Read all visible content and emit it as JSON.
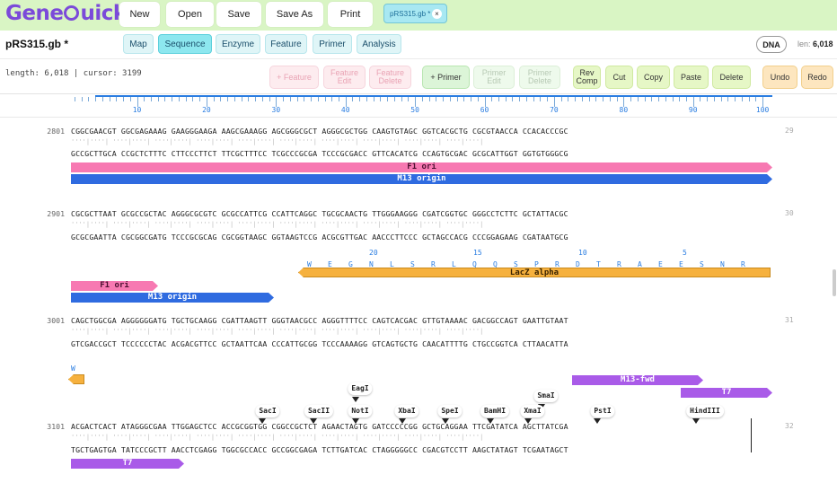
{
  "app": {
    "brand_pre": "Gene",
    "brand_post": "uick"
  },
  "toolbar": {
    "new": "New",
    "open": "Open",
    "save": "Save",
    "save_as": "Save As",
    "print": "Print"
  },
  "file_tab": {
    "label": "pRS315.gb *",
    "close": "×"
  },
  "file": {
    "name": "pRS315.gb *",
    "type_badge": "DNA",
    "len_label": "len:",
    "len_value": "6,018"
  },
  "views": [
    "Map",
    "Sequence",
    "Enzyme",
    "Feature",
    "Primer",
    "Analysis"
  ],
  "active_view": "Sequence",
  "status": "length: 6,018 | cursor: 3199",
  "actions": {
    "add_feature": "+ Feature",
    "feature_edit": "Feature Edit",
    "feature_delete": "Feature Delete",
    "add_primer": "+ Primer",
    "primer_edit": "Primer Edit",
    "primer_delete": "Primer Delete",
    "rev_comp": "Rev Comp",
    "cut": "Cut",
    "copy": "Copy",
    "paste": "Paste",
    "delete": "Delete",
    "undo": "Undo",
    "redo": "Redo"
  },
  "ruler": {
    "labels": [
      "10",
      "20",
      "30",
      "40",
      "50",
      "60",
      "70",
      "80",
      "90",
      "100"
    ]
  },
  "blocks": [
    {
      "index": "2801",
      "top": "CGGCGAACGT GGCGAGAAAG GAAGGGAAGA AAGCGAAAGG AGCGGGCGCT AGGGCGCTGG CAAGTGTAGC GGTCACGCTG CGCGTAACCA CCACACCCGC",
      "ticks": "''''|''''| ''''|''''| ''''|''''| ''''|''''| ''''|''''| ''''|''''| ''''|''''| ''''|''''| ''''|''''| ''''|''''|",
      "bottom": "GCCGCTTGCA CCGCTCTTTC CTTCCCTTCT TTCGCTTTCC TCGCCCGCGA TCCCGCGACC GTTCACATCG CCAGTGCGAC GCGCATTGGT GGTGTGGGCG",
      "right_index": "29"
    },
    {
      "index": "2901",
      "top": "CGCGCTTAAT GCGCCGCTAC AGGGCGCGTC GCGCCATTCG CCATTCAGGC TGCGCAACTG TTGGGAAGGG CGATCGGTGC GGGCCTCTTC GCTATTACGC",
      "ticks": "''''|''''| ''''|''''| ''''|''''| ''''|''''| ''''|''''| ''''|''''| ''''|''''| ''''|''''| ''''|''''| ''''|''''|",
      "bottom": "GCGCGAATTA CGCGGCGATG TCCCGCGCAG CGCGGTAAGC GGTAAGTCCG ACGCGTTGAC AACCCTTCCC GCTAGCCACG CCCGGAGAAG CGATAATGCG",
      "right_index": "30"
    },
    {
      "index": "3001",
      "top": "CAGCTGGCGA AGGGGGGATG TGCTGCAAGG CGATTAAGTT GGGTAACGCC AGGGTTTTCC CAGTCACGAC GTTGTAAAAC GACGGCCAGT GAATTGTAAT",
      "ticks": "''''|''''| ''''|''''| ''''|''''| ''''|''''| ''''|''''| ''''|''''| ''''|''''| ''''|''''| ''''|''''| ''''|''''|",
      "bottom": "GTCGACCGCT TCCCCCCTAC ACGACGTTCC GCTAATTCAA CCCATTGCGG TCCCAAAAGG GTCAGTGCTG CAACATTTTG CTGCCGGTCA CTTAACATTA",
      "right_index": "31"
    },
    {
      "index": "3101",
      "top": "ACGACTCACT ATAGGGCGAA TTGGAGCTCC ACCGCGGTGG CGGCCGCTCT AGAACTAGTG GATCCCCCGG GCTGCAGGAA TTCGATATCA AGCTTATCGA",
      "ticks": "''''|''''| ''''|''''| ''''|''''| ''''|''''| ''''|''''| ''''|''''| ''''|''''| ''''|''''| ''''|''''| ''''|''''|",
      "bottom": "TGCTGAGTGA TATCCCGCTT AACCTCGAGG TGGCGCCACC GCCGGCGAGA TCTTGATCAC CTAGGGGGCC CGACGTCCTT AAGCTATAGT TCGAATAGCT",
      "right_index": "32"
    }
  ],
  "features": {
    "f1_ori": "F1 ori",
    "m13_origin": "M13 origin",
    "lacz_alpha": "LacZ alpha",
    "m13_fwd": "M13-fwd",
    "t7": "T7",
    "w": "W"
  },
  "translation": {
    "residues": [
      "W",
      "E",
      "G",
      "N",
      "L",
      "S",
      "R",
      "L",
      "Q",
      "Q",
      "S",
      "P",
      "R",
      "D",
      "T",
      "R",
      "A",
      "E",
      "E",
      "S",
      "N",
      "R"
    ],
    "numbers": [
      "20",
      "15",
      "10",
      "5"
    ]
  },
  "enzymes": [
    "SacI",
    "SacII",
    "EagI",
    "NotI",
    "XbaI",
    "SpeI",
    "BamHI",
    "SmaI",
    "XmaI",
    "PstI",
    "HindIII"
  ]
}
